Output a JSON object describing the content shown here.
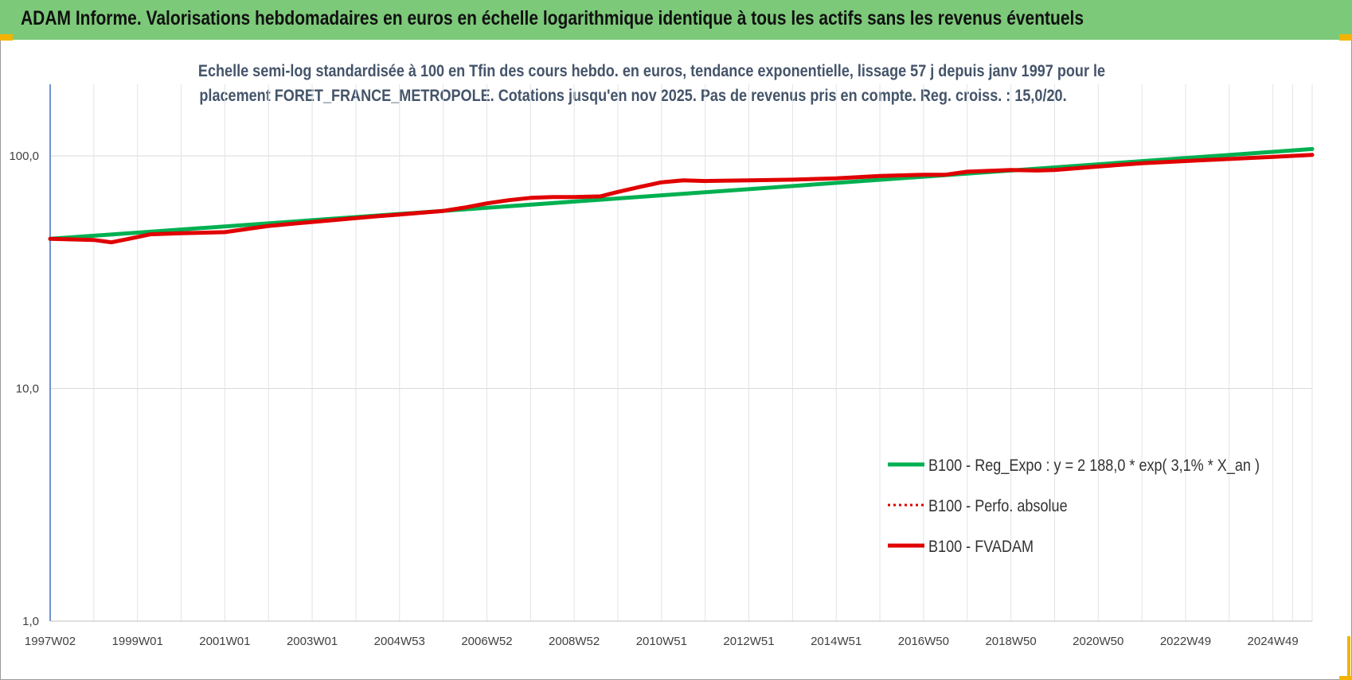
{
  "header": {
    "title": "ADAM Informe. Valorisations hebdomadaires en euros en échelle logarithmique identique à tous les actifs sans les revenus éventuels"
  },
  "chart_data": {
    "type": "line",
    "title_lines": [
      "Echelle semi-log standardisée à 100 en Tfin des cours hebdo. en euros, tendance exponentielle, lissage 57 j depuis janv 1997 pour le",
      "placement FORET_FRANCE_METROPOLE. Cotations jusqu'en nov 2025. Pas de revenus pris en compte. Reg. croiss. : 15,0/20."
    ],
    "y_scale": "log",
    "ylim": [
      1,
      200
    ],
    "y_ticks": [
      {
        "value": 1,
        "label": "1,0"
      },
      {
        "value": 10,
        "label": "10,0"
      },
      {
        "value": 100,
        "label": "100,0"
      }
    ],
    "xlim": [
      1997.0,
      2025.9
    ],
    "x_ticks": [
      {
        "value": 1997.0,
        "label": "1997W02"
      },
      {
        "value": 1999.0,
        "label": "1999W01"
      },
      {
        "value": 2001.0,
        "label": "2001W01"
      },
      {
        "value": 2003.0,
        "label": "2003W01"
      },
      {
        "value": 2005.0,
        "label": "2004W53"
      },
      {
        "value": 2007.0,
        "label": "2006W52"
      },
      {
        "value": 2009.0,
        "label": "2008W52"
      },
      {
        "value": 2011.0,
        "label": "2010W51"
      },
      {
        "value": 2013.0,
        "label": "2012W51"
      },
      {
        "value": 2015.0,
        "label": "2014W51"
      },
      {
        "value": 2017.0,
        "label": "2016W50"
      },
      {
        "value": 2019.0,
        "label": "2018W50"
      },
      {
        "value": 2021.0,
        "label": "2020W50"
      },
      {
        "value": 2023.0,
        "label": "2022W49"
      },
      {
        "value": 2025.0,
        "label": "2024W49"
      }
    ],
    "grid": true,
    "legend_position": "bottom-right",
    "series": [
      {
        "name": "B100 - Reg_Expo : y = 2 188,0 * exp( 3,1% *  X_an )",
        "color": "#00b050",
        "style": "solid",
        "x": [
          1997.0,
          2025.9
        ],
        "y": [
          44.0,
          107.0
        ]
      },
      {
        "name": "B100 - Perfo. absolue",
        "color": "#e00000",
        "style": "dotted",
        "x": [],
        "y": []
      },
      {
        "name": "B100 - FVADAM",
        "color": "#e00000",
        "style": "solid",
        "x": [
          1997.0,
          1998.0,
          1998.4,
          1998.8,
          1999.3,
          2000.0,
          2001.0,
          2002.0,
          2003.0,
          2004.0,
          2004.5,
          2005.0,
          2006.0,
          2006.5,
          2007.0,
          2007.5,
          2008.0,
          2008.5,
          2009.0,
          2009.6,
          2010.0,
          2010.5,
          2011.0,
          2011.5,
          2012.0,
          2013.0,
          2014.0,
          2015.0,
          2016.0,
          2017.0,
          2017.5,
          2018.0,
          2019.0,
          2019.6,
          2020.0,
          2021.0,
          2022.0,
          2023.0,
          2024.0,
          2025.0,
          2025.9
        ],
        "y": [
          44.0,
          43.5,
          42.5,
          44.0,
          46.0,
          46.5,
          47.0,
          50.0,
          52.0,
          54.0,
          55.0,
          56.0,
          58.0,
          60.0,
          62.5,
          64.5,
          66.0,
          66.5,
          66.5,
          67.0,
          70.0,
          73.5,
          77.0,
          78.5,
          78.0,
          78.5,
          79.0,
          80.0,
          82.0,
          83.0,
          83.0,
          85.5,
          87.0,
          86.5,
          87.0,
          90.0,
          93.0,
          95.0,
          97.0,
          99.0,
          101.0
        ]
      }
    ]
  }
}
